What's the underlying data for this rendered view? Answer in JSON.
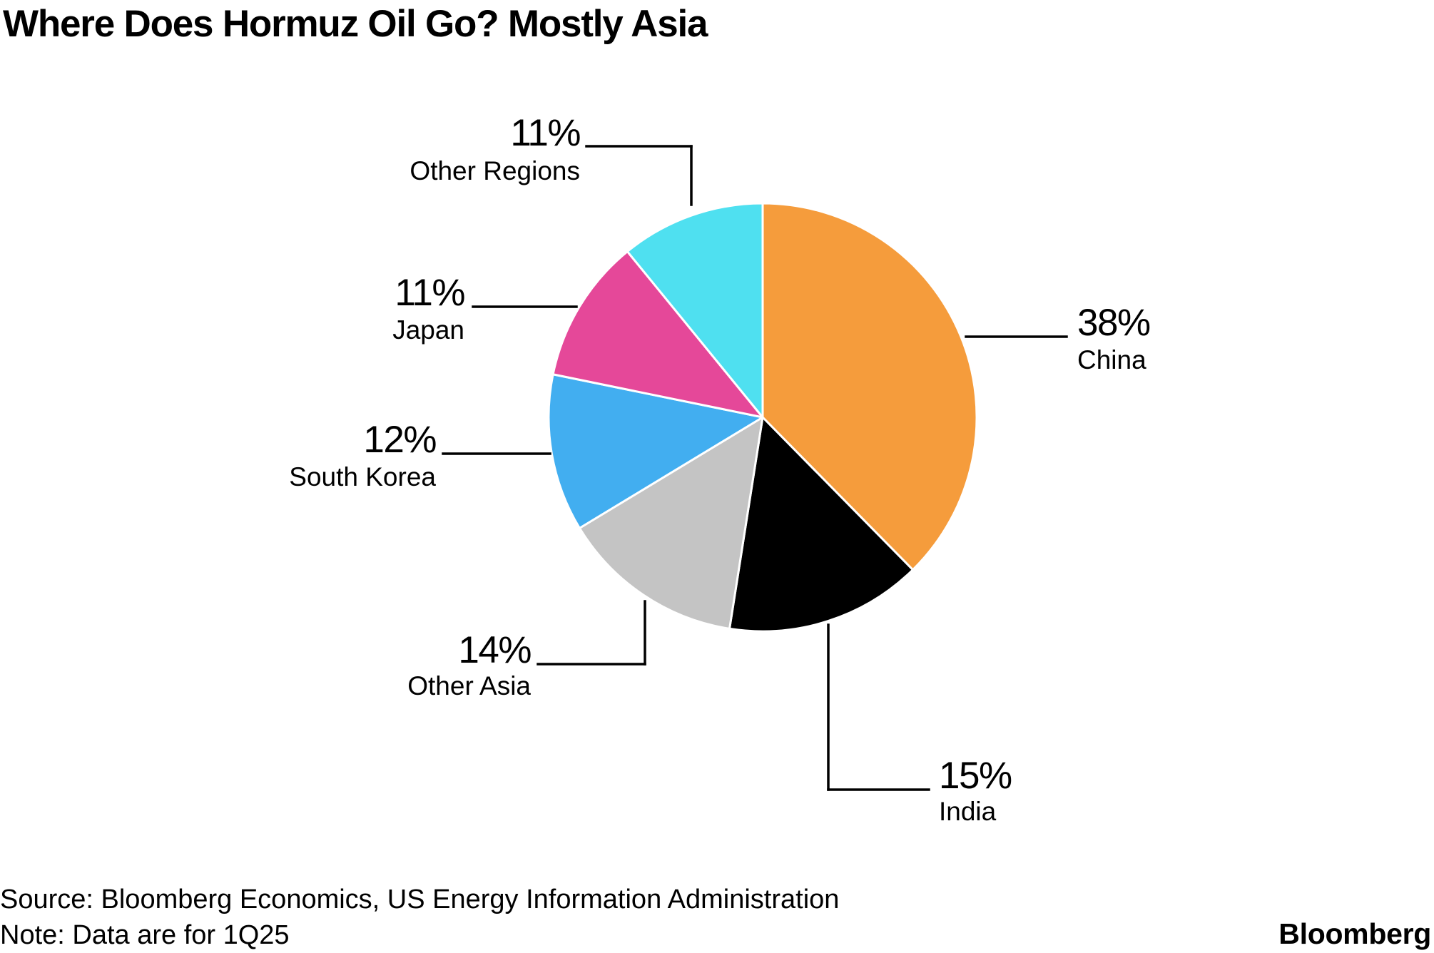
{
  "title": "Where Does Hormuz Oil Go? Mostly Asia",
  "chart_data": {
    "type": "pie",
    "title": "Where Does Hormuz Oil Go? Mostly Asia",
    "unit": "%",
    "start_angle_deg": 0,
    "direction": "clockwise",
    "slices": [
      {
        "label": "China",
        "value": 38,
        "value_label": "38%",
        "color": "#F59C3C"
      },
      {
        "label": "India",
        "value": 15,
        "value_label": "15%",
        "color": "#000000"
      },
      {
        "label": "Other Asia",
        "value": 14,
        "value_label": "14%",
        "color": "#C4C4C4"
      },
      {
        "label": "South Korea",
        "value": 12,
        "value_label": "12%",
        "color": "#42AEF0"
      },
      {
        "label": "Japan",
        "value": 11,
        "value_label": "11%",
        "color": "#E54899"
      },
      {
        "label": "Other Regions",
        "value": 11,
        "value_label": "11%",
        "color": "#4FE0F0"
      }
    ]
  },
  "footer": {
    "source": "Source: Bloomberg Economics, US Energy Information Administration",
    "note": "Note: Data are for 1Q25"
  },
  "brand": "Bloomberg"
}
